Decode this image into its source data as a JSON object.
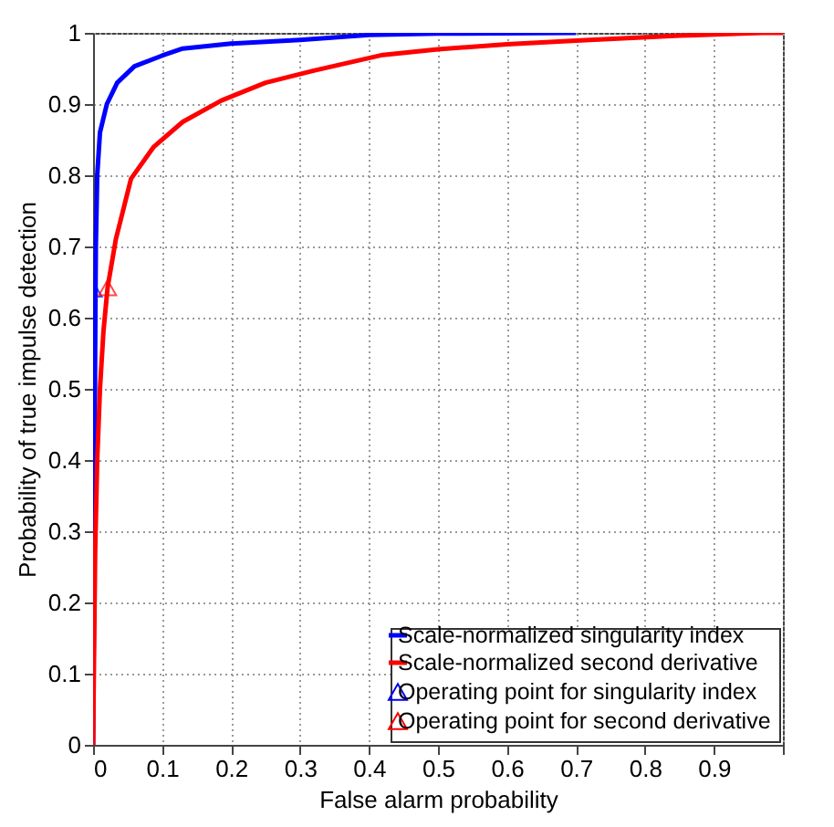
{
  "chart_data": {
    "type": "line",
    "xlabel": "False alarm probability",
    "ylabel": "Probability of true impulse detection",
    "xlim": [
      0,
      1
    ],
    "ylim": [
      0,
      1
    ],
    "xticks": [
      0,
      0.1,
      0.2,
      0.3,
      0.4,
      0.5,
      0.6,
      0.7,
      0.8,
      0.9,
      {
        "value": 1,
        "label": null
      }
    ],
    "yticks": [
      0,
      0.1,
      0.2,
      0.3,
      0.4,
      0.5,
      0.6,
      0.7,
      0.8,
      0.9,
      1
    ],
    "grid": true,
    "legend": "bottom right",
    "line_style": "solid",
    "series": [
      {
        "name": "Scale-normalized singularity index",
        "color": "#0000ff",
        "x": [
          0,
          0.002,
          0.003,
          0.004,
          0.006,
          0.01,
          0.02,
          0.035,
          0.06,
          0.1,
          0.13,
          0.2,
          0.3,
          0.4,
          0.5,
          0.7
        ],
        "values": [
          0,
          0.36,
          0.55,
          0.7,
          0.8,
          0.86,
          0.9,
          0.93,
          0.953,
          0.968,
          0.978,
          0.985,
          0.99,
          0.997,
          0.999,
          1.0
        ]
      },
      {
        "name": "Scale-normalized second derivative",
        "color": "#ff0000",
        "x": [
          0,
          0.003,
          0.006,
          0.01,
          0.015,
          0.021,
          0.033,
          0.055,
          0.088,
          0.13,
          0.186,
          0.25,
          0.32,
          0.42,
          0.5,
          0.6,
          0.7,
          0.85,
          0.97,
          1.0
        ],
        "values": [
          0,
          0.27,
          0.4,
          0.5,
          0.58,
          0.642,
          0.71,
          0.795,
          0.84,
          0.875,
          0.905,
          0.93,
          0.947,
          0.969,
          0.977,
          0.984,
          0.989,
          0.996,
          1.0,
          1.0
        ]
      },
      {
        "name": "Operating point for singularity index",
        "type": "scatter",
        "marker": "triangle",
        "color": "#0000ff",
        "x": [
          0.0
        ],
        "values": [
          0.64
        ]
      },
      {
        "name": "Operating point for second derivative",
        "type": "scatter",
        "marker": "triangle",
        "color": "#ff0000",
        "x": [
          0.021
        ],
        "values": [
          0.642
        ]
      }
    ]
  }
}
